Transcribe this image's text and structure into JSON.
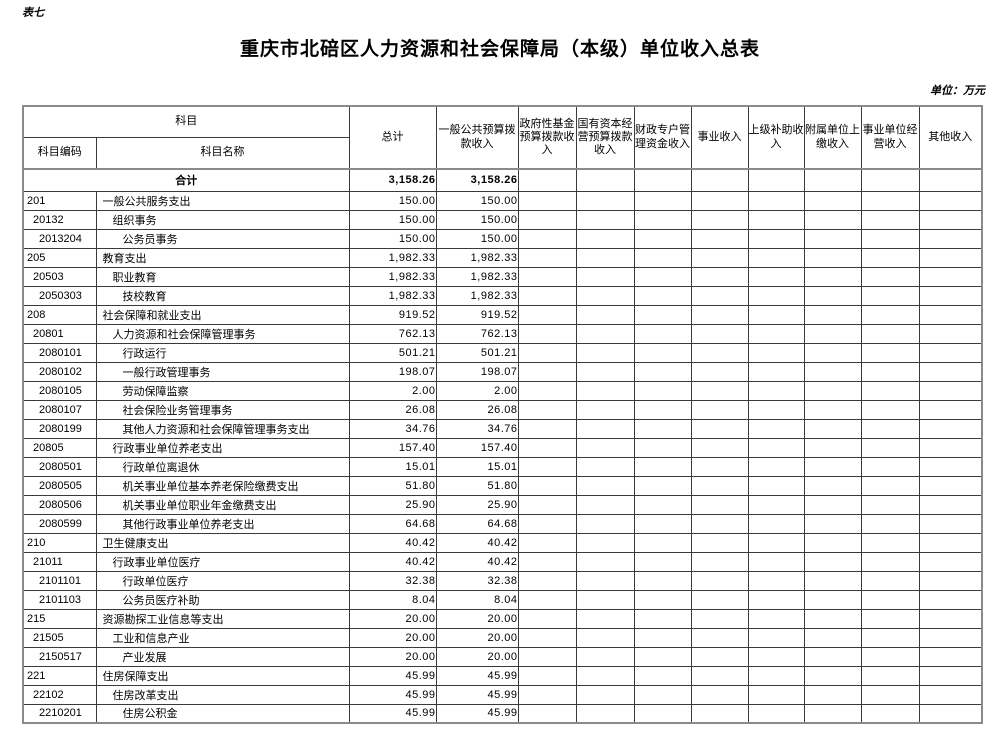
{
  "page": {
    "corner_label": "表七",
    "title": "重庆市北碚区人力资源和社会保障局（本级）单位收入总表",
    "unit_note": "单位：万元"
  },
  "table": {
    "header": {
      "subject": "科目",
      "subject_code": "科目编码",
      "subject_name": "科目名称",
      "columns": [
        "总计",
        "一般公共预算拨款收入",
        "政府性基金预算拨款收入",
        "国有资本经营预算拨款收入",
        "财政专户管理资金收入",
        "事业收入",
        "上级补助收入",
        "附属单位上缴收入",
        "事业单位经营收入",
        "其他收入"
      ]
    },
    "total_row": {
      "label": "合计",
      "total": "3,158.26",
      "general_budget": "3,158.26"
    },
    "rows": [
      {
        "code": "201",
        "name": "一般公共服务支出",
        "level": 1,
        "total": "150.00",
        "general_budget": "150.00"
      },
      {
        "code": "20132",
        "name": "组织事务",
        "level": 2,
        "total": "150.00",
        "general_budget": "150.00"
      },
      {
        "code": "2013204",
        "name": "公务员事务",
        "level": 3,
        "total": "150.00",
        "general_budget": "150.00"
      },
      {
        "code": "205",
        "name": "教育支出",
        "level": 1,
        "total": "1,982.33",
        "general_budget": "1,982.33"
      },
      {
        "code": "20503",
        "name": "职业教育",
        "level": 2,
        "total": "1,982.33",
        "general_budget": "1,982.33"
      },
      {
        "code": "2050303",
        "name": "技校教育",
        "level": 3,
        "total": "1,982.33",
        "general_budget": "1,982.33"
      },
      {
        "code": "208",
        "name": "社会保障和就业支出",
        "level": 1,
        "total": "919.52",
        "general_budget": "919.52"
      },
      {
        "code": "20801",
        "name": "人力资源和社会保障管理事务",
        "level": 2,
        "total": "762.13",
        "general_budget": "762.13"
      },
      {
        "code": "2080101",
        "name": "行政运行",
        "level": 3,
        "total": "501.21",
        "general_budget": "501.21"
      },
      {
        "code": "2080102",
        "name": "一般行政管理事务",
        "level": 3,
        "total": "198.07",
        "general_budget": "198.07"
      },
      {
        "code": "2080105",
        "name": "劳动保障监察",
        "level": 3,
        "total": "2.00",
        "general_budget": "2.00"
      },
      {
        "code": "2080107",
        "name": "社会保险业务管理事务",
        "level": 3,
        "total": "26.08",
        "general_budget": "26.08"
      },
      {
        "code": "2080199",
        "name": "其他人力资源和社会保障管理事务支出",
        "level": 3,
        "total": "34.76",
        "general_budget": "34.76"
      },
      {
        "code": "20805",
        "name": "行政事业单位养老支出",
        "level": 2,
        "total": "157.40",
        "general_budget": "157.40"
      },
      {
        "code": "2080501",
        "name": "行政单位离退休",
        "level": 3,
        "total": "15.01",
        "general_budget": "15.01"
      },
      {
        "code": "2080505",
        "name": "机关事业单位基本养老保险缴费支出",
        "level": 3,
        "total": "51.80",
        "general_budget": "51.80"
      },
      {
        "code": "2080506",
        "name": "机关事业单位职业年金缴费支出",
        "level": 3,
        "total": "25.90",
        "general_budget": "25.90"
      },
      {
        "code": "2080599",
        "name": "其他行政事业单位养老支出",
        "level": 3,
        "total": "64.68",
        "general_budget": "64.68"
      },
      {
        "code": "210",
        "name": "卫生健康支出",
        "level": 1,
        "total": "40.42",
        "general_budget": "40.42"
      },
      {
        "code": "21011",
        "name": "行政事业单位医疗",
        "level": 2,
        "total": "40.42",
        "general_budget": "40.42"
      },
      {
        "code": "2101101",
        "name": "行政单位医疗",
        "level": 3,
        "total": "32.38",
        "general_budget": "32.38"
      },
      {
        "code": "2101103",
        "name": "公务员医疗补助",
        "level": 3,
        "total": "8.04",
        "general_budget": "8.04"
      },
      {
        "code": "215",
        "name": "资源勘探工业信息等支出",
        "level": 1,
        "total": "20.00",
        "general_budget": "20.00"
      },
      {
        "code": "21505",
        "name": "工业和信息产业",
        "level": 2,
        "total": "20.00",
        "general_budget": "20.00"
      },
      {
        "code": "2150517",
        "name": "产业发展",
        "level": 3,
        "total": "20.00",
        "general_budget": "20.00"
      },
      {
        "code": "221",
        "name": "住房保障支出",
        "level": 1,
        "total": "45.99",
        "general_budget": "45.99"
      },
      {
        "code": "22102",
        "name": "住房改革支出",
        "level": 2,
        "total": "45.99",
        "general_budget": "45.99"
      },
      {
        "code": "2210201",
        "name": "住房公积金",
        "level": 3,
        "total": "45.99",
        "general_budget": "45.99"
      }
    ]
  }
}
